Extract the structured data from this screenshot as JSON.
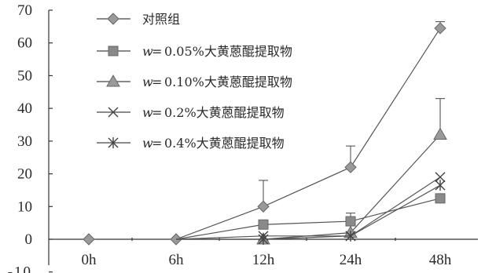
{
  "chart_data": {
    "type": "line",
    "categories": [
      "0h",
      "6h",
      "12h",
      "24h",
      "48h"
    ],
    "ylim": [
      -10,
      70
    ],
    "yticks": [
      -10,
      0,
      10,
      20,
      30,
      40,
      50,
      60,
      70
    ],
    "grid": false,
    "legend_position": "top-left",
    "series": [
      {
        "name": "对照组",
        "name_prefix": "",
        "marker": "diamond",
        "values": [
          0,
          0,
          10,
          22,
          64.5
        ],
        "errors": [
          0,
          0,
          8,
          6.5,
          2
        ]
      },
      {
        "name": "0.05%大黄蒽醌提取物",
        "name_prefix": "w",
        "marker": "square",
        "values": [
          0,
          0,
          4.5,
          5.5,
          12.5
        ],
        "errors": [
          0,
          0,
          1,
          2.5,
          0
        ]
      },
      {
        "name": "0.10%大黄蒽醌提取物",
        "name_prefix": "w",
        "marker": "triangle",
        "values": [
          0,
          0,
          0,
          2,
          32
        ],
        "errors": [
          0,
          0,
          0,
          0,
          11
        ]
      },
      {
        "name": "0.2%大黄蒽醌提取物",
        "name_prefix": "w",
        "marker": "x",
        "values": [
          0,
          0,
          1,
          1,
          19
        ],
        "errors": [
          0,
          0,
          0,
          0,
          0
        ]
      },
      {
        "name": "0.4%大黄蒽醌提取物",
        "name_prefix": "w",
        "marker": "asterisk",
        "values": [
          0,
          0,
          0,
          1,
          16.5
        ],
        "errors": [
          0,
          0,
          0,
          0,
          0
        ]
      }
    ]
  }
}
